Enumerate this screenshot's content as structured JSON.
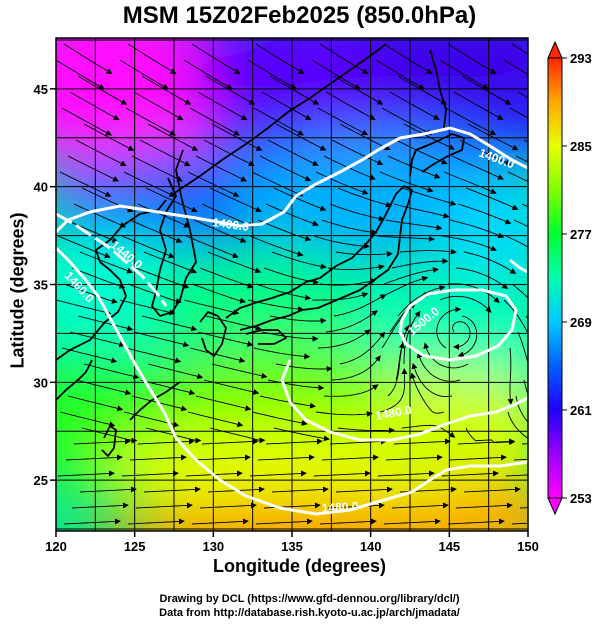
{
  "title": "MSM 15Z02Feb2025 (850.0hPa)",
  "xlabel": "Longitude (degrees)",
  "ylabel": "Latitude  (degrees)",
  "credits": {
    "line1": "Drawing by DCL (https://www.gfd-dennou.org/library/dcl/)",
    "line2": "Data from http://database.rish.kyoto-u.ac.jp/arch/jmadata/"
  },
  "chart_data": {
    "type": "heatmap",
    "xlim": [
      120,
      150
    ],
    "ylim": [
      22.4,
      47.6
    ],
    "x_ticks": [
      120,
      125,
      130,
      135,
      140,
      145,
      150
    ],
    "y_ticks": [
      25,
      30,
      35,
      40,
      45
    ],
    "grid": true,
    "colorbar": {
      "range": [
        253,
        293
      ],
      "tick_values": [
        253,
        261,
        269,
        277,
        285,
        293
      ],
      "position": "right",
      "colors": [
        "#ff00ff",
        "#7b00ff",
        "#0000ff",
        "#00a0ff",
        "#00ffcc",
        "#00ff00",
        "#c8ff00",
        "#ffff00",
        "#ffa000",
        "#ff2000"
      ]
    },
    "contours": [
      {
        "label": "1400.0"
      },
      {
        "label": "1400.0"
      },
      {
        "label": "1440.0"
      },
      {
        "label": "1460.0"
      },
      {
        "label": "1480.0"
      },
      {
        "label": "1500.0"
      },
      {
        "label": "1480.0"
      }
    ]
  }
}
